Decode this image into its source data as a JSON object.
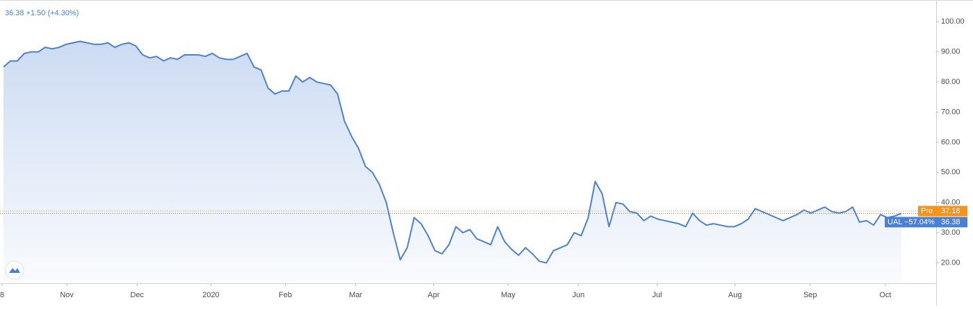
{
  "chart_data": {
    "type": "area",
    "header": "36.38 +1.50 (+4.30%)",
    "color": "#4a80d4",
    "xlim": [
      -0.5,
      134
    ],
    "ylim": [
      13.2,
      107.2
    ],
    "xticks": [
      {
        "value": -0.2,
        "label": "8"
      },
      {
        "value": 9.1,
        "label": "Nov"
      },
      {
        "value": 19.2,
        "label": "Dec"
      },
      {
        "value": 29.8,
        "label": "2020"
      },
      {
        "value": 40.5,
        "label": "Feb"
      },
      {
        "value": 50.6,
        "label": "Mar"
      },
      {
        "value": 61.8,
        "label": "Apr"
      },
      {
        "value": 72.5,
        "label": "May"
      },
      {
        "value": 82.6,
        "label": "Jun"
      },
      {
        "value": 93.9,
        "label": "Jul"
      },
      {
        "value": 105.1,
        "label": "Aug"
      },
      {
        "value": 115.9,
        "label": "Sep"
      },
      {
        "value": 126.7,
        "label": "Oct"
      }
    ],
    "yticks": [
      {
        "value": 20,
        "label": "20.00"
      },
      {
        "value": 30,
        "label": "30.00"
      },
      {
        "value": 40,
        "label": "40.00"
      },
      {
        "value": 50,
        "label": "50.00"
      },
      {
        "value": 60,
        "label": "60.00"
      },
      {
        "value": 70,
        "label": "70.00"
      },
      {
        "value": 80,
        "label": "80.00"
      },
      {
        "value": 90,
        "label": "90.00"
      },
      {
        "value": 100,
        "label": "100.00"
      }
    ],
    "values": [
      85,
      87,
      87,
      89.5,
      90,
      90,
      91.5,
      91,
      91.5,
      92.5,
      93,
      93.5,
      93,
      92.5,
      92.5,
      93,
      91.5,
      92.5,
      93,
      92,
      89,
      88,
      88.5,
      87,
      88,
      87.5,
      89,
      89,
      89,
      88.5,
      89.5,
      88,
      87.5,
      87.5,
      88.5,
      89.5,
      85,
      84,
      78,
      76,
      77,
      77,
      82,
      80,
      81.5,
      80,
      79.5,
      79,
      76,
      67,
      62,
      58,
      52,
      50,
      46,
      40,
      30,
      21,
      25,
      35,
      33,
      29,
      24,
      23,
      26,
      32,
      30,
      31,
      28,
      27,
      26,
      32,
      27,
      24.5,
      22.5,
      25,
      23,
      20.5,
      20,
      24,
      25,
      26,
      30,
      29,
      35,
      47,
      43,
      32,
      40,
      39.5,
      37,
      36.5,
      34,
      35.5,
      34.5,
      34,
      33.5,
      33,
      32,
      36.5,
      34,
      32.5,
      33,
      32.5,
      32,
      32,
      33,
      34.5,
      38,
      37,
      36,
      35,
      34,
      35,
      36,
      37.5,
      36.5,
      37.5,
      38.5,
      37,
      36.5,
      37,
      38.5,
      33.5,
      34,
      32.5,
      36,
      35,
      35.5,
      36.4
    ],
    "markers": [
      {
        "name": "Pre",
        "value": 37.18,
        "color": "#f7931a"
      },
      {
        "name": "UAL",
        "change": "−57.04%",
        "value": 36.38,
        "color": "#4a80d4"
      }
    ]
  }
}
